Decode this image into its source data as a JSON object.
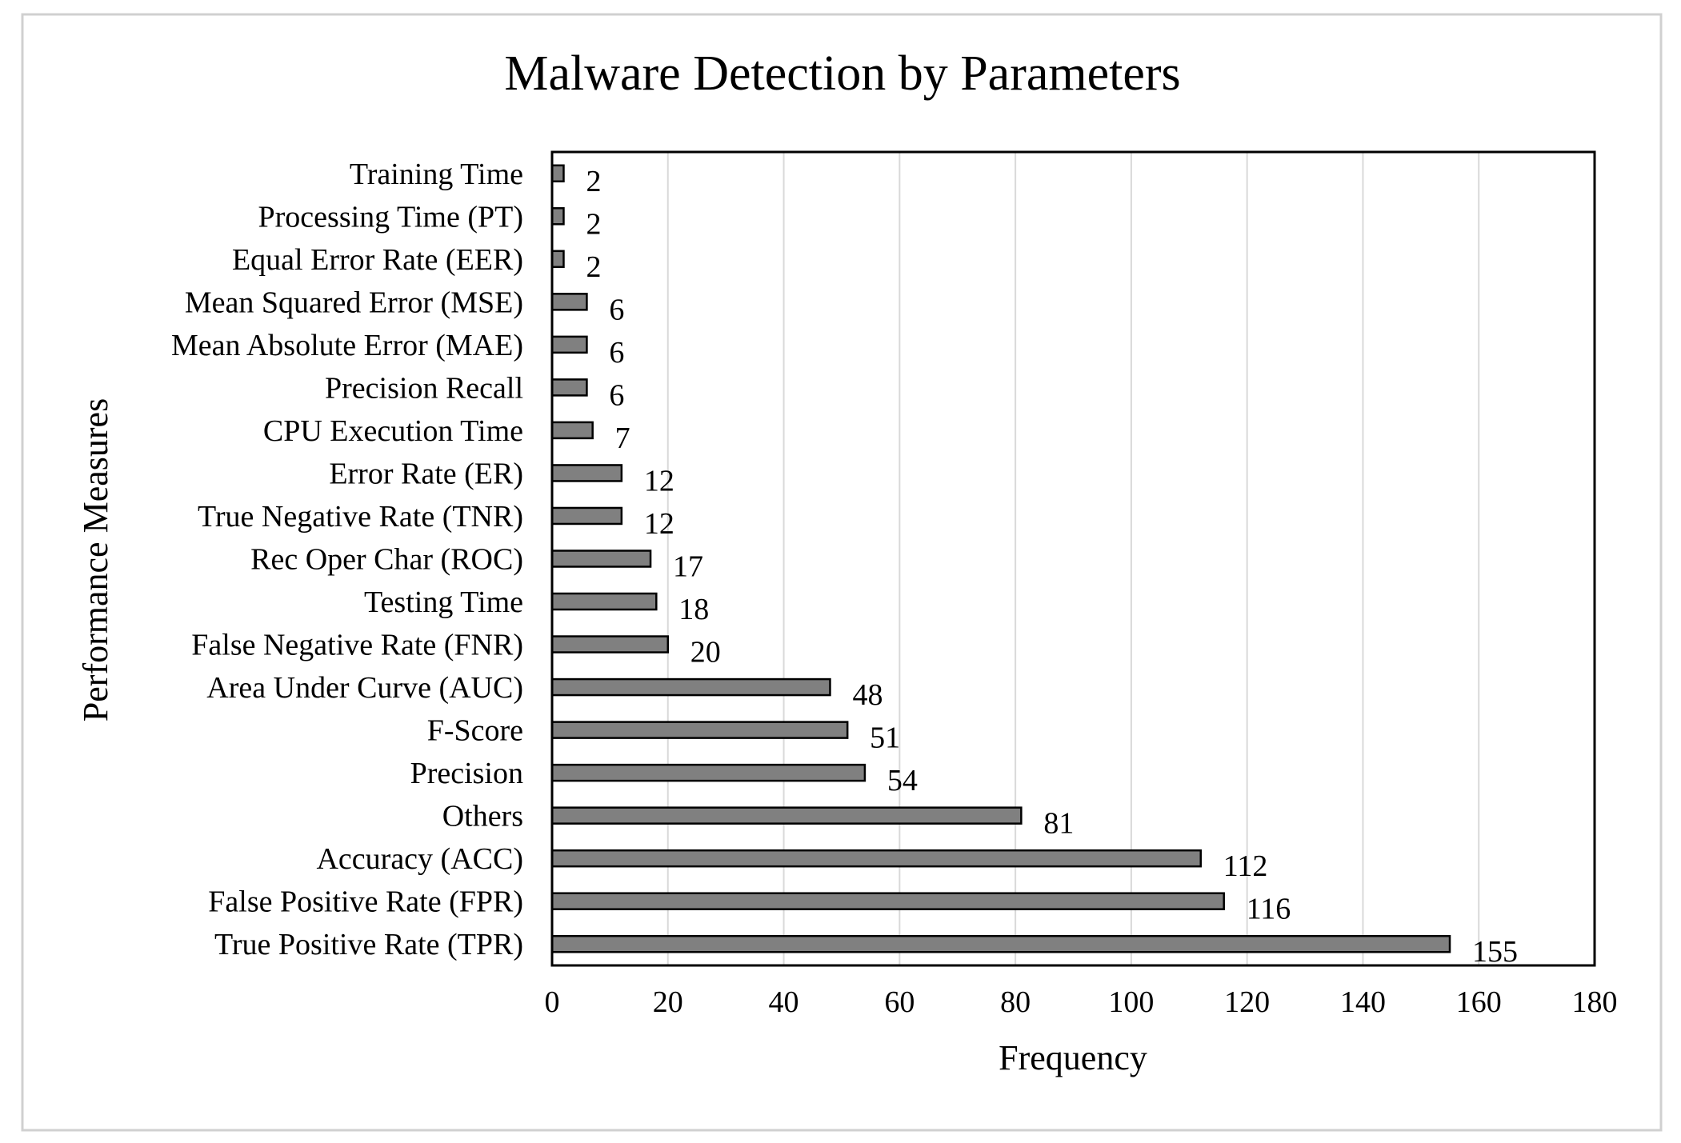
{
  "chart_data": {
    "type": "bar",
    "orientation": "horizontal",
    "title": "Malware Detection by Parameters",
    "xlabel": "Frequency",
    "ylabel": "Performance Measures",
    "xlim": [
      0,
      180
    ],
    "x_ticks": [
      0,
      20,
      40,
      60,
      80,
      100,
      120,
      140,
      160,
      180
    ],
    "grid": "vertical gridlines",
    "legend": "none",
    "data_labels": true,
    "categories": [
      "Training Time",
      "Processing Time (PT)",
      "Equal Error Rate (EER)",
      "Mean Squared Error (MSE)",
      "Mean Absolute Error (MAE)",
      "Precision Recall",
      "CPU Execution Time",
      "Error Rate (ER)",
      "True Negative Rate (TNR)",
      "Rec Oper Char (ROC)",
      "Testing Time",
      "False Negative Rate (FNR)",
      "Area Under Curve (AUC)",
      "F-Score",
      "Precision",
      "Others",
      "Accuracy (ACC)",
      "False Positive Rate (FPR)",
      "True Positive Rate (TPR)"
    ],
    "values": [
      2,
      2,
      2,
      6,
      6,
      6,
      7,
      12,
      12,
      17,
      18,
      20,
      48,
      51,
      54,
      81,
      112,
      116,
      155
    ],
    "colors": {
      "bar_fill": "#808080",
      "bar_stroke": "#000000",
      "gridline": "#d9d9d9",
      "frame": "#000000",
      "outer_border": "#d0d0d0"
    }
  }
}
